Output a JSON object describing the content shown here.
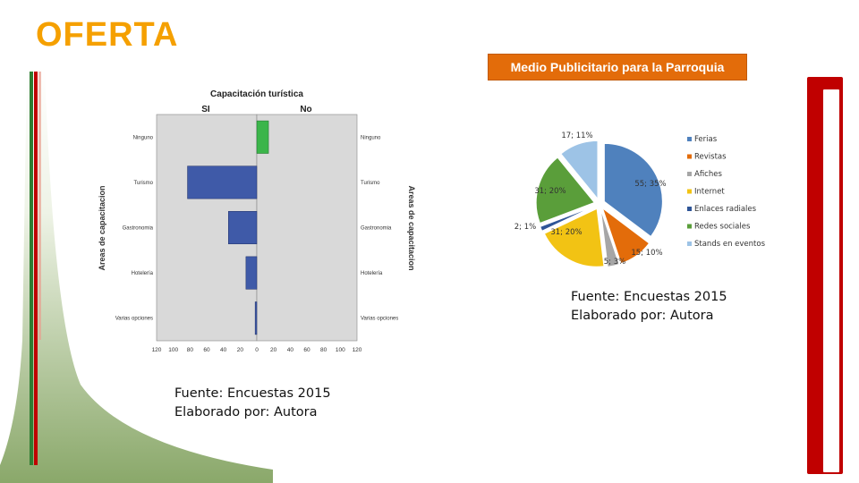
{
  "slide": {
    "title": "OFERTA",
    "badge": "Medio Publicitario para la Parroquia",
    "caption_left": {
      "line1": "Fuente: Encuestas 2015",
      "line2": "Elaborado por: Autora"
    },
    "caption_right": {
      "line1": "Fuente: Encuestas 2015",
      "line2": "Elaborado por: Autora"
    },
    "colors": {
      "title": "#f5a000",
      "badge": "#e36c0a",
      "accent_red": "#c00000",
      "accent_green": "#8aa86a"
    }
  },
  "chart_data": [
    {
      "type": "bar",
      "orientation": "horizontal-population-pyramid",
      "title": "Capacitación turística",
      "left_panel_label": "SI",
      "right_panel_label": "No",
      "ylabel": "Areas de capacitacion",
      "ylabel_right": "Areas de capacitacion",
      "categories": [
        "Ninguno",
        "Turismo",
        "Gastronomia",
        "Hotelería",
        "Varias opciones"
      ],
      "right_categories": [
        "Ninguno",
        "Turismo",
        "Gastronomia",
        "Hotelería",
        "Varias opciones"
      ],
      "series": [
        {
          "name": "SI",
          "values": [
            0,
            83,
            34,
            13,
            2
          ],
          "color": "#3f5aa8"
        },
        {
          "name": "No",
          "values": [
            14,
            0,
            0,
            0,
            0
          ],
          "color": "#3bb54a"
        }
      ],
      "xticks_left": [
        "120",
        "100",
        "80",
        "60",
        "40",
        "20",
        "0"
      ],
      "xticks_right": [
        "0",
        "20",
        "40",
        "60",
        "80",
        "100",
        "120"
      ],
      "xlim": [
        0,
        120
      ]
    },
    {
      "type": "pie",
      "exploded": true,
      "categories": [
        "Ferias",
        "Revistas",
        "Afiches",
        "Internet",
        "Enlaces radiales",
        "Redes sociales",
        "Stands en eventos"
      ],
      "values": [
        55,
        15,
        5,
        31,
        2,
        31,
        17
      ],
      "labels": [
        "55; 35%",
        "15; 10%",
        "5; 3%",
        "31; 20%",
        "2; 1%",
        "31; 20%",
        "17; 11%"
      ],
      "colors": [
        "#4f81bd",
        "#e36c0a",
        "#a6a6a6",
        "#f2c314",
        "#2f5597",
        "#5a9e3a",
        "#9dc3e6"
      ],
      "legend": "right"
    }
  ]
}
